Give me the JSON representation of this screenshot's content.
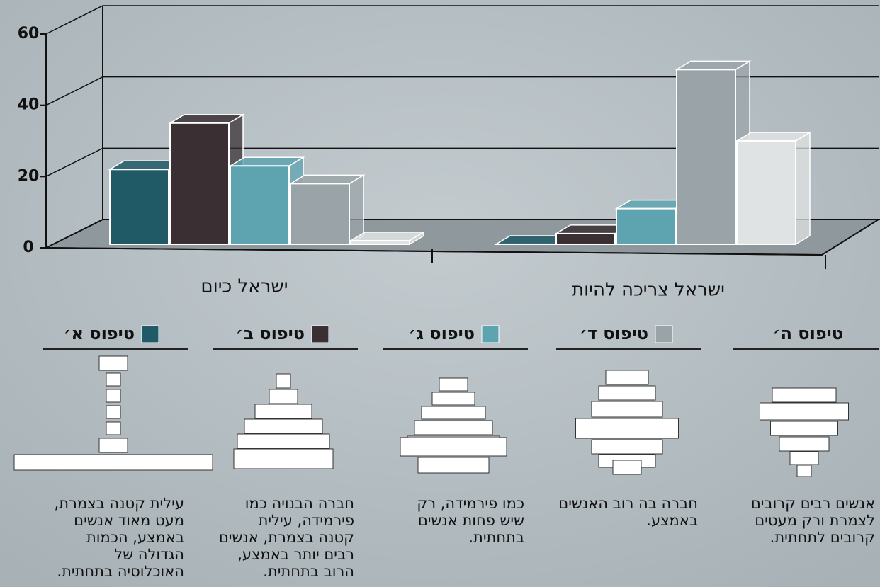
{
  "chart_data": {
    "type": "bar",
    "categories": [
      "ישראל כיום",
      "ישראל צריכה להיות"
    ],
    "series": [
      {
        "name": "טיפוס א׳",
        "color": "#1f5a66",
        "values": [
          22,
          1
        ]
      },
      {
        "name": "טיפוס ב׳",
        "color": "#3a3033",
        "values": [
          35,
          4
        ]
      },
      {
        "name": "טיפוס ג׳",
        "color": "#5ea3b0",
        "values": [
          23,
          11
        ]
      },
      {
        "name": "טיפוס ד׳",
        "color": "#9aa4a8",
        "values": [
          18,
          50
        ]
      },
      {
        "name": "טיפוס ה׳",
        "color": "#dfe3e3",
        "values": [
          2,
          30
        ]
      }
    ],
    "ylim": [
      0,
      60
    ],
    "yticks": [
      0,
      20,
      40,
      60
    ],
    "grid": true,
    "descriptions": [
      [
        "עילית קטנה בצמרת,",
        "מעט מאוד אנשים",
        "באמצע, הכמות",
        "הגדולה של",
        "האוכלוסיה בתחתית."
      ],
      [
        "חברה הבנויה כמו",
        "פירמידה, עילית",
        "קטנה בצמרת, אנשים",
        "רבים יותר באמצע,",
        "הרוב בתחתית."
      ],
      [
        "כמו פירמידה, רק",
        "שיש פחות אנשים",
        "בתחתית."
      ],
      [
        "חברה בה רוב האנשים",
        "באמצע."
      ],
      [
        "אנשים רבים קרובים",
        "לצמרת ורק מעטים",
        "קרובים לתחתית."
      ]
    ]
  }
}
